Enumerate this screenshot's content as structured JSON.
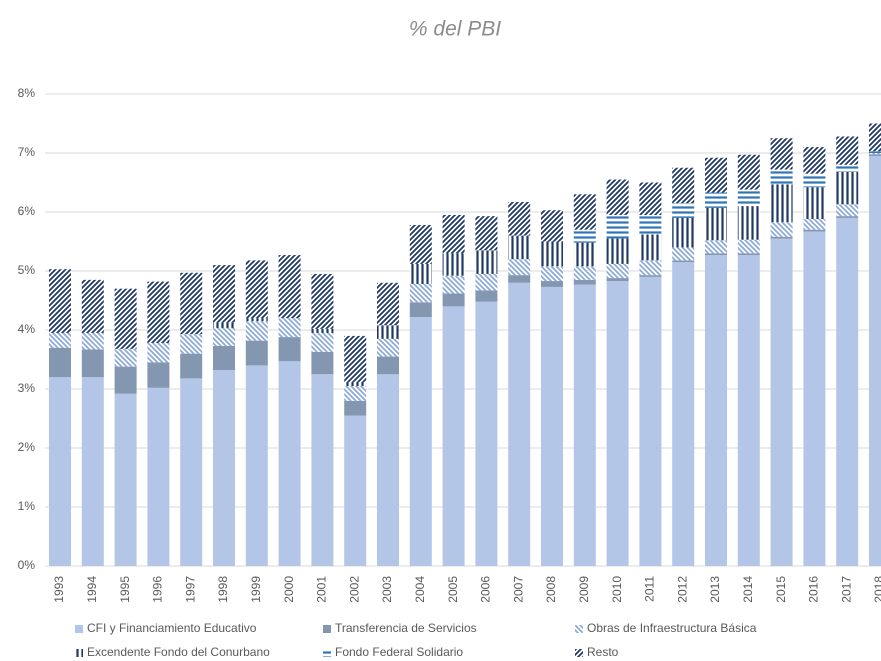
{
  "chart_data": {
    "type": "bar",
    "stacked": true,
    "title": "% del PBI",
    "categories": [
      "1993",
      "1994",
      "1995",
      "1996",
      "1997",
      "1998",
      "1999",
      "2000",
      "2001",
      "2002",
      "2003",
      "2004",
      "2005",
      "2006",
      "2007",
      "2008",
      "2009",
      "2010",
      "2011",
      "2012",
      "2013",
      "2014",
      "2015",
      "2016",
      "2017",
      "2018"
    ],
    "series": [
      {
        "name": "CFI y Financiamiento Educativo",
        "color": "#b4c6e7",
        "pattern": "solid",
        "values": [
          3.2,
          3.2,
          2.92,
          3.02,
          3.18,
          3.32,
          3.4,
          3.47,
          3.25,
          2.55,
          3.25,
          4.22,
          4.4,
          4.48,
          4.8,
          4.73,
          4.77,
          4.83,
          4.9,
          5.15,
          5.27,
          5.27,
          5.55,
          5.67,
          5.9,
          6.95
        ]
      },
      {
        "name": "Transferencia de Servicios",
        "color": "#8497b0",
        "pattern": "solid",
        "values": [
          0.5,
          0.47,
          0.46,
          0.43,
          0.42,
          0.41,
          0.42,
          0.41,
          0.38,
          0.25,
          0.3,
          0.25,
          0.22,
          0.19,
          0.13,
          0.1,
          0.08,
          0.05,
          0.03,
          0.03,
          0.03,
          0.03,
          0.03,
          0.03,
          0.03,
          0.03
        ]
      },
      {
        "name": "Obras de Infraestructura Básica",
        "color": "#8eaadb",
        "pattern": "backslash",
        "values": [
          0.25,
          0.28,
          0.3,
          0.33,
          0.33,
          0.3,
          0.33,
          0.32,
          0.32,
          0.25,
          0.3,
          0.31,
          0.3,
          0.28,
          0.27,
          0.25,
          0.23,
          0.24,
          0.25,
          0.22,
          0.22,
          0.23,
          0.25,
          0.18,
          0.2,
          0.02
        ]
      },
      {
        "name": "Excendente Fondo del Conurbano",
        "color": "#203864",
        "pattern": "vertical",
        "values": [
          0,
          0,
          0,
          0,
          0,
          0.1,
          0.05,
          0,
          0.07,
          0.07,
          0.23,
          0.34,
          0.38,
          0.4,
          0.4,
          0.42,
          0.4,
          0.43,
          0.44,
          0.5,
          0.55,
          0.57,
          0.64,
          0.54,
          0.55,
          0
        ]
      },
      {
        "name": "Fondo Federal Solidario",
        "color": "#2e75b6",
        "pattern": "horizontal",
        "values": [
          0,
          0,
          0,
          0,
          0,
          0,
          0,
          0,
          0,
          0,
          0,
          0,
          0,
          0,
          0,
          0,
          0.22,
          0.4,
          0.33,
          0.25,
          0.26,
          0.28,
          0.25,
          0.23,
          0.12,
          0.03
        ]
      },
      {
        "name": "Resto",
        "color": "#203864",
        "pattern": "slash",
        "values": [
          1.08,
          0.9,
          1.02,
          1.04,
          1.04,
          0.97,
          0.98,
          1.07,
          0.93,
          0.78,
          0.72,
          0.66,
          0.65,
          0.58,
          0.57,
          0.53,
          0.6,
          0.6,
          0.55,
          0.6,
          0.59,
          0.59,
          0.53,
          0.45,
          0.48,
          0.47
        ]
      }
    ],
    "ylim": [
      0,
      8
    ],
    "yticks": [
      {
        "value": 0,
        "label": "0%"
      },
      {
        "value": 1,
        "label": "1%"
      },
      {
        "value": 2,
        "label": "2%"
      },
      {
        "value": 3,
        "label": "3%"
      },
      {
        "value": 4,
        "label": "4%"
      },
      {
        "value": 5,
        "label": "5%"
      },
      {
        "value": 6,
        "label": "6%"
      },
      {
        "value": 7,
        "label": "7%"
      },
      {
        "value": 8,
        "label": "8%"
      }
    ],
    "grid": true,
    "legend": "bottom"
  }
}
